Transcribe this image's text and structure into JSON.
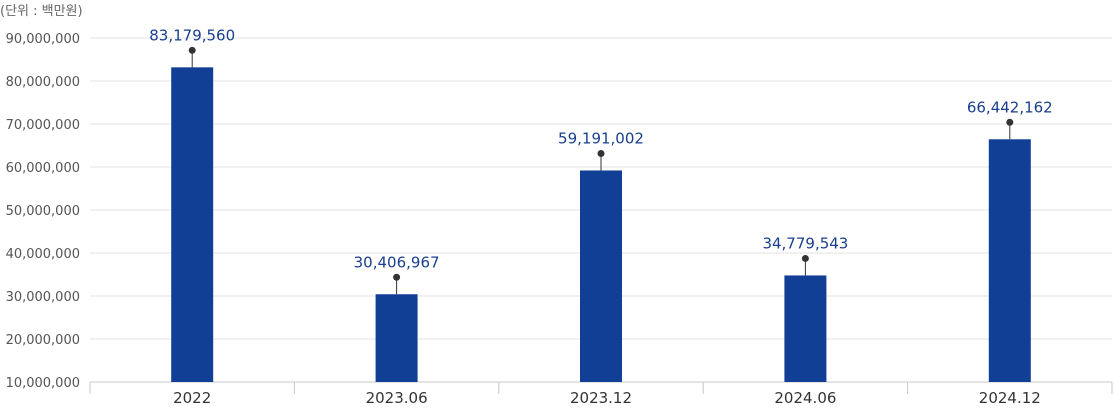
{
  "unit_label": "(단위 : 백만원)",
  "colors": {
    "bar": "#123f96",
    "grid": "#e3e3e3",
    "axis": "#c8c8c8",
    "label": "#1a3f8f",
    "marker": "#333333"
  },
  "chart_data": {
    "type": "bar",
    "categories": [
      "2022",
      "2023.06",
      "2023.12",
      "2024.06",
      "2024.12"
    ],
    "values": [
      83179560,
      30406967,
      59191002,
      34779543,
      66442162
    ],
    "value_labels": [
      "83,179,560",
      "30,406,967",
      "59,191,002",
      "34,779,543",
      "66,442,162"
    ],
    "ylim": [
      10000000,
      90000000
    ],
    "yticks": [
      90000000,
      80000000,
      70000000,
      60000000,
      50000000,
      40000000,
      30000000,
      20000000,
      10000000
    ],
    "ytick_labels": [
      "90,000,000",
      "80,000,000",
      "70,000,000",
      "60,000,000",
      "50,000,000",
      "40,000,000",
      "30,000,000",
      "20,000,000",
      "10,000,000"
    ],
    "grid": true,
    "title": "",
    "xlabel": "",
    "ylabel": ""
  }
}
